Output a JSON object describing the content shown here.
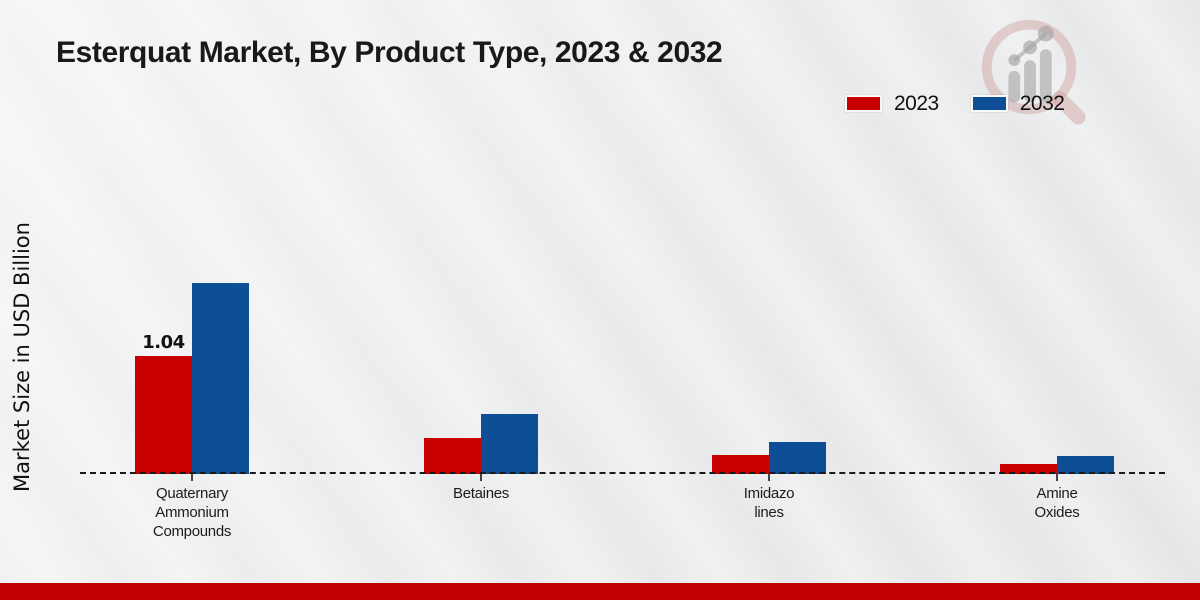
{
  "chart_data": {
    "type": "bar",
    "title": "Esterquat Market, By Product Type, 2023 & 2032",
    "ylabel": "Market Size in USD Billion",
    "xlabel": "",
    "categories": [
      "Quaternary Ammonium Compounds",
      "Betaines",
      "Imidazolines",
      "Amine Oxides"
    ],
    "category_label_lines": [
      [
        "Quaternary",
        "Ammonium",
        "Compounds"
      ],
      [
        "Betaines"
      ],
      [
        "Imidazo",
        "lines"
      ],
      [
        "Amine",
        "Oxides"
      ]
    ],
    "series": [
      {
        "name": "2023",
        "color": "#c90000",
        "values": [
          1.04,
          0.32,
          0.17,
          0.09
        ]
      },
      {
        "name": "2032",
        "color": "#0e4e96",
        "values": [
          1.68,
          0.53,
          0.28,
          0.16
        ]
      }
    ],
    "bar_labels": [
      {
        "series_index": 0,
        "category_index": 0,
        "text": "1.04"
      }
    ],
    "ylim": [
      0,
      1.8
    ],
    "grid": false,
    "legend_position": "top-right",
    "baseline_style": "dashed"
  },
  "branding": {
    "logo_icon": "magnifier-bar-chart-icon",
    "bottom_bar_color": "#c00000"
  }
}
